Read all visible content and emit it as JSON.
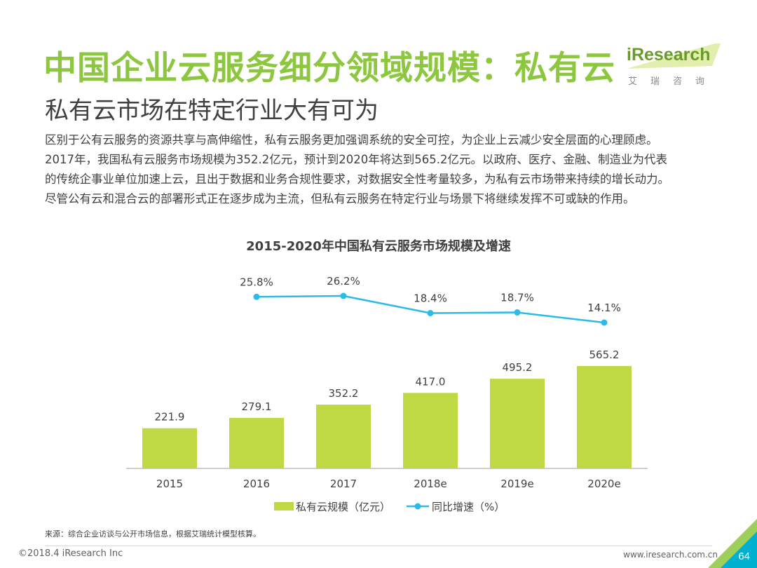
{
  "header": {
    "title": "中国企业云服务细分领域规模：私有云",
    "subtitle": "私有云市场在特定行业大有可为"
  },
  "logo": {
    "main": "iResearch",
    "sub": "艾瑞咨询"
  },
  "body": {
    "lines": [
      "区别于公有云服务的资源共享与高伸缩性，私有云服务更加强调系统的安全可控，为企业上云减少安全层面的心理顾虑。",
      "2017年，我国私有云服务市场规模为352.2亿元，预计到2020年将达到565.2亿元。以政府、医疗、金融、制造业为代表",
      "的传统企事业单位加速上云，且出于数据和业务合规性要求，对数据安全性考量较多，为私有云市场带来持续的增长动力。",
      "尽管公有云和混合云的部署形式正在逐步成为主流，但私有云服务在特定行业与场景下将继续发挥不可或缺的作用。"
    ]
  },
  "chart_data": {
    "type": "bar",
    "title": "2015-2020年中国私有云服务市场规模及增速",
    "categories": [
      "2015",
      "2016",
      "2017",
      "2018e",
      "2019e",
      "2020e"
    ],
    "series": [
      {
        "name": "私有云规模（亿元）",
        "type": "bar",
        "values": [
          221.9,
          279.1,
          352.2,
          417.0,
          495.2,
          565.2
        ],
        "labels": [
          "221.9",
          "279.1",
          "352.2",
          "417.0",
          "495.2",
          "565.2"
        ],
        "color": "#bfd944"
      },
      {
        "name": "同比增速（%）",
        "type": "line",
        "values": [
          null,
          25.8,
          26.2,
          18.4,
          18.7,
          14.1
        ],
        "labels": [
          "",
          "25.8%",
          "26.2%",
          "18.4%",
          "18.7%",
          "14.1%"
        ],
        "color": "#2bbbe6"
      }
    ],
    "legend_position": "bottom",
    "grid": false
  },
  "footer": {
    "source": "来源：综合企业访谈与公开市场信息，根据艾瑞统计模型核算。",
    "copyright": "©2018.4 iResearch Inc",
    "url": "www.iresearch.com.cn",
    "page": "64"
  },
  "colors": {
    "title": "#8dc63f",
    "accent_blue": "#00b0d0"
  }
}
